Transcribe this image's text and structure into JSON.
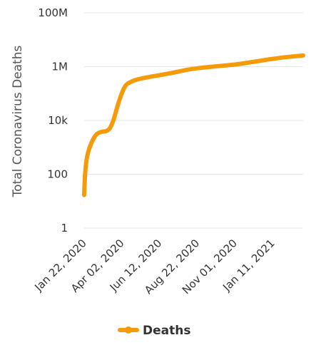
{
  "chart_data": {
    "type": "line",
    "title": "",
    "xlabel": "",
    "ylabel": "Total Coronavirus Deaths",
    "y_scale": "log",
    "ylim": [
      1,
      100000000
    ],
    "y_ticks": [
      {
        "value": 1,
        "label": "1"
      },
      {
        "value": 100,
        "label": "100"
      },
      {
        "value": 10000,
        "label": "10k"
      },
      {
        "value": 1000000,
        "label": "1M"
      },
      {
        "value": 100000000,
        "label": "100M"
      }
    ],
    "x_ticks": [
      "Jan 22, 2020",
      "Apr 02, 2020",
      "Jun 12, 2020",
      "Aug 22, 2020",
      "Nov 01, 2020",
      "Jan 11, 2021"
    ],
    "xlim": [
      "2020-01-22",
      "2021-03-10"
    ],
    "grid": true,
    "legend_position": "bottom",
    "series": [
      {
        "name": "Deaths",
        "color": "#f59b0a",
        "points": [
          [
            "2020-01-22",
            17
          ],
          [
            "2020-01-24",
            120
          ],
          [
            "2020-01-28",
            500
          ],
          [
            "2020-02-05",
            1500
          ],
          [
            "2020-02-14",
            3000
          ],
          [
            "2020-02-24",
            3800
          ],
          [
            "2020-03-03",
            4000
          ],
          [
            "2020-03-10",
            5000
          ],
          [
            "2020-03-17",
            10000
          ],
          [
            "2020-03-24",
            30000
          ],
          [
            "2020-03-31",
            80000
          ],
          [
            "2020-04-07",
            170000
          ],
          [
            "2020-04-14",
            240000
          ],
          [
            "2020-04-28",
            320000
          ],
          [
            "2020-05-20",
            400000
          ],
          [
            "2020-06-12",
            480000
          ],
          [
            "2020-07-08",
            600000
          ],
          [
            "2020-08-01",
            750000
          ],
          [
            "2020-08-22",
            870000
          ],
          [
            "2020-09-20",
            1000000
          ],
          [
            "2020-11-01",
            1200000
          ],
          [
            "2020-12-10",
            1550000
          ],
          [
            "2021-01-11",
            1950000
          ],
          [
            "2021-02-10",
            2300000
          ],
          [
            "2021-03-10",
            2600000
          ]
        ]
      }
    ]
  },
  "legend": {
    "label": "Deaths",
    "color": "#f59b0a"
  }
}
